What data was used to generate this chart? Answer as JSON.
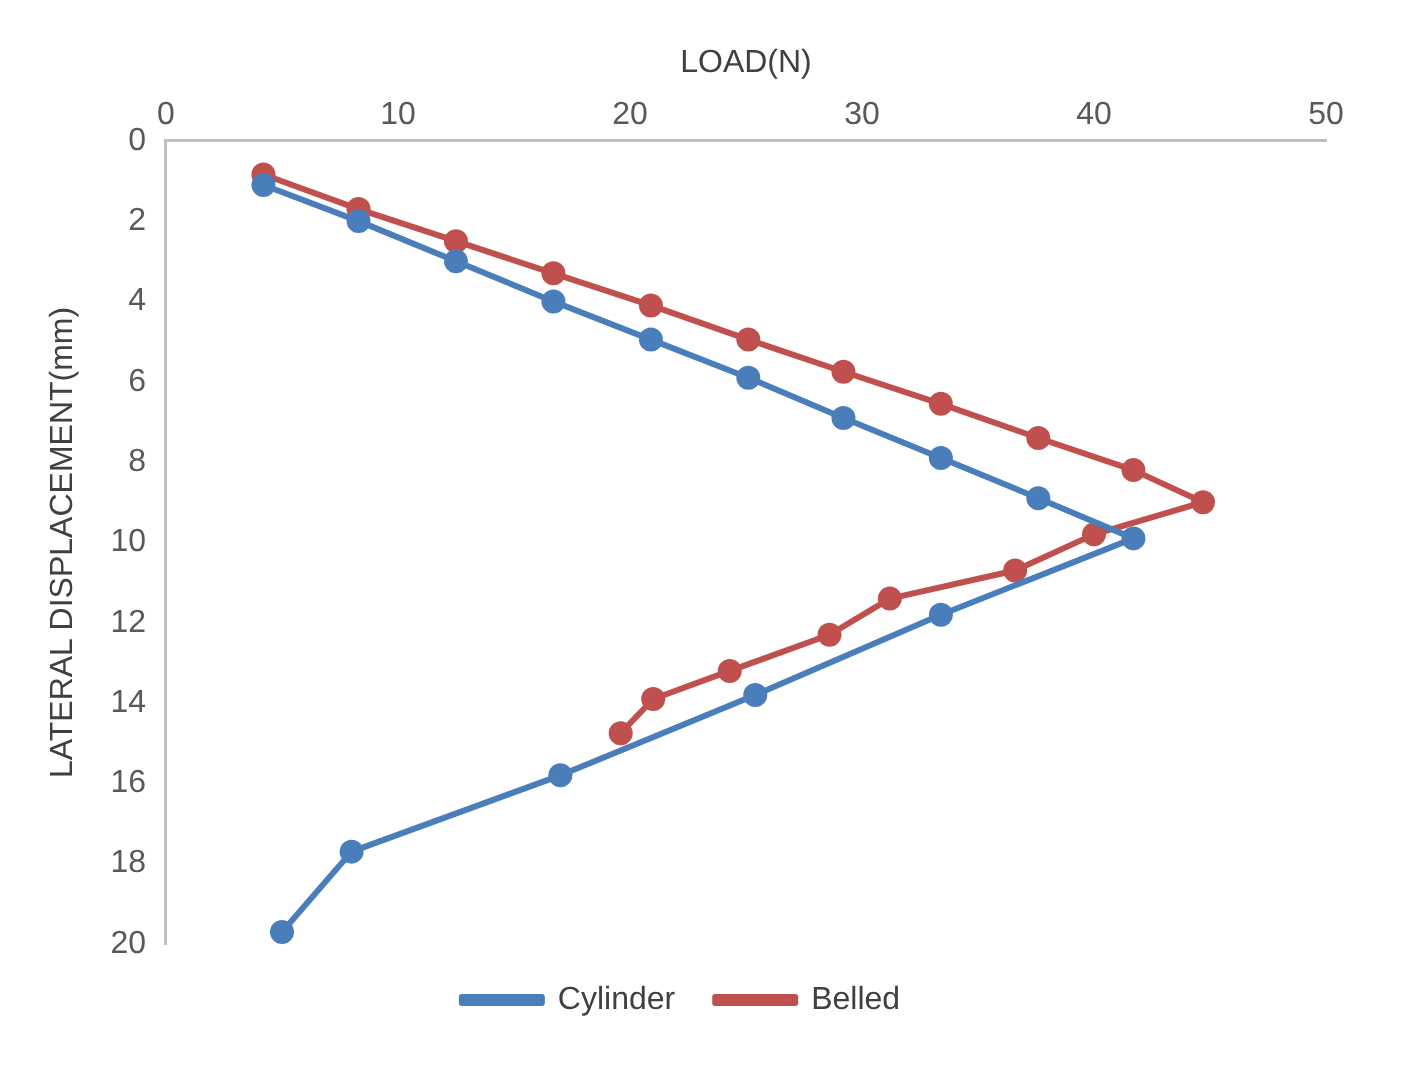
{
  "chart_data": {
    "type": "line",
    "xlabel": "LOAD(N)",
    "ylabel": "LATERAL DISPLACEMENT(mm)",
    "xlim": [
      0,
      50
    ],
    "xticks": [
      0,
      10,
      20,
      30,
      40,
      50
    ],
    "ylim": [
      20,
      0
    ],
    "yticks": [
      0,
      2,
      4,
      6,
      8,
      10,
      12,
      14,
      16,
      18,
      20
    ],
    "grid": false,
    "legend": "bottom",
    "marker": "circle",
    "line_style": "solid",
    "series": [
      {
        "name": "Cylinder",
        "color": "#4a7ebb",
        "x": [
          4.2,
          8.3,
          12.5,
          16.7,
          20.9,
          25.1,
          29.2,
          33.4,
          37.6,
          41.7,
          33.4,
          25.4,
          17.0,
          8.0,
          5.0
        ],
        "values": [
          1.1,
          2.0,
          3.0,
          4.0,
          4.95,
          5.9,
          6.9,
          7.9,
          8.9,
          9.9,
          11.8,
          13.8,
          15.8,
          17.7,
          19.7
        ]
      },
      {
        "name": "Belled",
        "color": "#c0504d",
        "x": [
          4.2,
          8.3,
          12.5,
          16.7,
          20.9,
          25.1,
          29.2,
          33.4,
          37.6,
          41.7,
          44.7,
          40.0,
          36.6,
          31.2,
          28.6,
          24.3,
          21.0,
          19.6
        ],
        "values": [
          0.84,
          1.7,
          2.5,
          3.3,
          4.1,
          4.95,
          5.75,
          6.55,
          7.4,
          8.2,
          9.0,
          9.8,
          10.7,
          11.4,
          12.3,
          13.2,
          13.9,
          14.75
        ]
      }
    ]
  }
}
